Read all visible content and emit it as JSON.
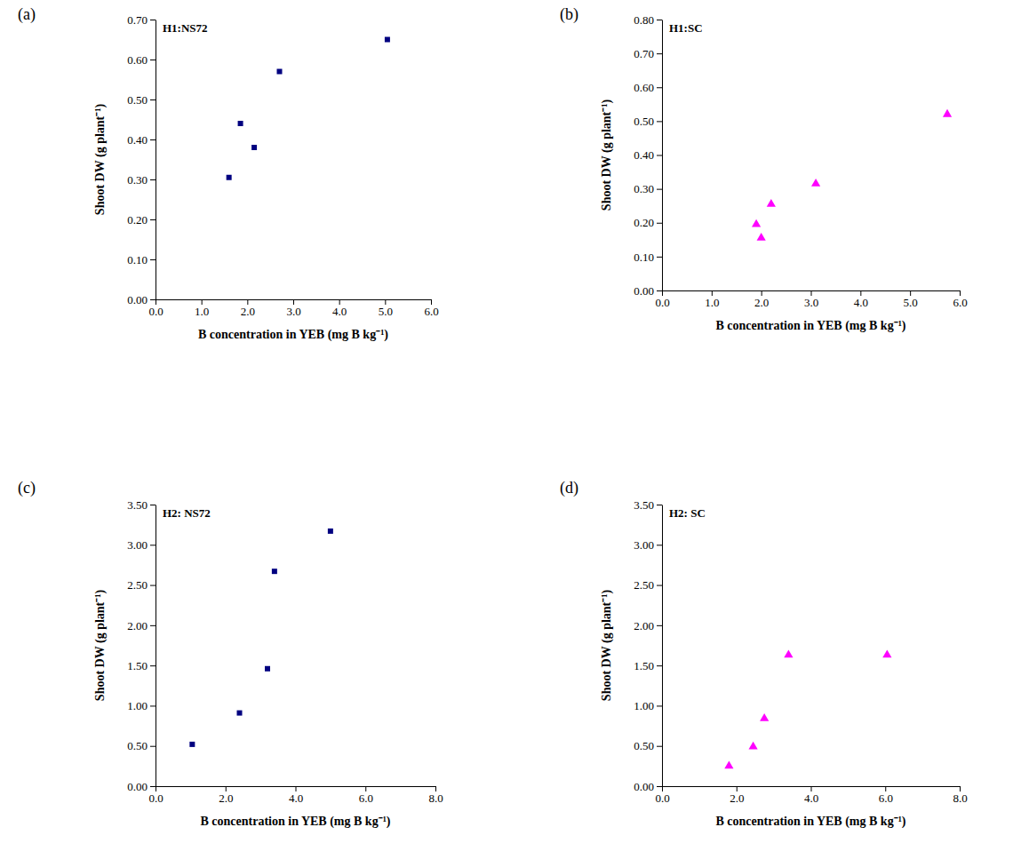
{
  "chart_data": [
    {
      "type": "scatter",
      "panel_label": "(a)",
      "title": "H1:NS72",
      "x_label": "B concentration in YEB (mg B kg⁻¹)",
      "y_label": "Shoot DW (g plant⁻¹)",
      "x": [
        1.6,
        1.85,
        2.15,
        2.7,
        5.05
      ],
      "values": [
        0.305,
        0.44,
        0.38,
        0.57,
        0.65
      ],
      "color": "#000080",
      "marker": "square",
      "xlim": [
        0,
        6
      ],
      "xticks": [
        {
          "value": 0,
          "label": "0.0"
        },
        {
          "value": 1,
          "label": "1.0"
        },
        {
          "value": 2,
          "label": "2.0"
        },
        {
          "value": 3,
          "label": "3.0"
        },
        {
          "value": 4,
          "label": "4.0"
        },
        {
          "value": 5,
          "label": "5.0"
        },
        {
          "value": 6,
          "label": "6.0"
        }
      ],
      "ylim": [
        0,
        0.7
      ],
      "yticks": [
        {
          "value": 0,
          "label": "0.00"
        },
        {
          "value": 0.1,
          "label": "0.10"
        },
        {
          "value": 0.2,
          "label": "0.20"
        },
        {
          "value": 0.3,
          "label": "0.30"
        },
        {
          "value": 0.4,
          "label": "0.40"
        },
        {
          "value": 0.5,
          "label": "0.50"
        },
        {
          "value": 0.6,
          "label": "0.60"
        },
        {
          "value": 0.7,
          "label": "0.70"
        }
      ],
      "grid": false
    },
    {
      "type": "scatter",
      "panel_label": "(b)",
      "title": "H1:SC",
      "x_label": "B concentration in YEB (mg B kg⁻¹)",
      "y_label": "Shoot DW (g plant⁻¹)",
      "x": [
        1.9,
        2.0,
        2.2,
        3.1,
        5.75
      ],
      "values": [
        0.195,
        0.155,
        0.255,
        0.315,
        0.52
      ],
      "color": "#ff00ff",
      "marker": "triangle",
      "xlim": [
        0,
        6
      ],
      "xticks": [
        {
          "value": 0,
          "label": "0.0"
        },
        {
          "value": 1,
          "label": "1.0"
        },
        {
          "value": 2,
          "label": "2.0"
        },
        {
          "value": 3,
          "label": "3.0"
        },
        {
          "value": 4,
          "label": "4.0"
        },
        {
          "value": 5,
          "label": "5.0"
        },
        {
          "value": 6,
          "label": "6.0"
        }
      ],
      "ylim": [
        0,
        0.8
      ],
      "yticks": [
        {
          "value": 0,
          "label": "0.00"
        },
        {
          "value": 0.1,
          "label": "0.10"
        },
        {
          "value": 0.2,
          "label": "0.20"
        },
        {
          "value": 0.3,
          "label": "0.30"
        },
        {
          "value": 0.4,
          "label": "0.40"
        },
        {
          "value": 0.5,
          "label": "0.50"
        },
        {
          "value": 0.6,
          "label": "0.60"
        },
        {
          "value": 0.7,
          "label": "0.70"
        },
        {
          "value": 0.8,
          "label": "0.80"
        }
      ],
      "grid": false
    },
    {
      "type": "scatter",
      "panel_label": "(c)",
      "title": "H2: NS72",
      "x_label": "B concentration in YEB (mg B kg⁻¹)",
      "y_label": "Shoot DW (g plant⁻¹)",
      "x": [
        1.05,
        2.4,
        3.2,
        3.4,
        5.0
      ],
      "values": [
        0.52,
        0.91,
        1.46,
        2.67,
        3.17
      ],
      "color": "#000080",
      "marker": "square",
      "xlim": [
        0,
        8
      ],
      "xticks": [
        {
          "value": 0,
          "label": "0.0"
        },
        {
          "value": 2,
          "label": "2.0"
        },
        {
          "value": 4,
          "label": "4.0"
        },
        {
          "value": 6,
          "label": "6.0"
        },
        {
          "value": 8,
          "label": "8.0"
        }
      ],
      "ylim": [
        0,
        3.5
      ],
      "yticks": [
        {
          "value": 0,
          "label": "0.00"
        },
        {
          "value": 0.5,
          "label": "0.50"
        },
        {
          "value": 1,
          "label": "1.00"
        },
        {
          "value": 1.5,
          "label": "1.50"
        },
        {
          "value": 2,
          "label": "2.00"
        },
        {
          "value": 2.5,
          "label": "2.50"
        },
        {
          "value": 3,
          "label": "3.00"
        },
        {
          "value": 3.5,
          "label": "3.50"
        }
      ],
      "grid": false
    },
    {
      "type": "scatter",
      "panel_label": "(d)",
      "title": "H2: SC",
      "x_label": "B concentration in YEB (mg B kg⁻¹)",
      "y_label": "Shoot DW (g plant⁻¹)",
      "x": [
        1.8,
        2.45,
        2.75,
        3.4,
        6.05
      ],
      "values": [
        0.25,
        0.49,
        0.84,
        1.63,
        1.63
      ],
      "color": "#ff00ff",
      "marker": "triangle",
      "xlim": [
        0,
        8
      ],
      "xticks": [
        {
          "value": 0,
          "label": "0.0"
        },
        {
          "value": 2,
          "label": "2.0"
        },
        {
          "value": 4,
          "label": "4.0"
        },
        {
          "value": 6,
          "label": "6.0"
        },
        {
          "value": 8,
          "label": "8.0"
        }
      ],
      "ylim": [
        0,
        3.5
      ],
      "yticks": [
        {
          "value": 0,
          "label": "0.00"
        },
        {
          "value": 0.5,
          "label": "0.50"
        },
        {
          "value": 1,
          "label": "1.00"
        },
        {
          "value": 1.5,
          "label": "1.50"
        },
        {
          "value": 2,
          "label": "2.00"
        },
        {
          "value": 2.5,
          "label": "2.50"
        },
        {
          "value": 3,
          "label": "3.00"
        },
        {
          "value": 3.5,
          "label": "3.50"
        }
      ],
      "grid": false
    }
  ]
}
